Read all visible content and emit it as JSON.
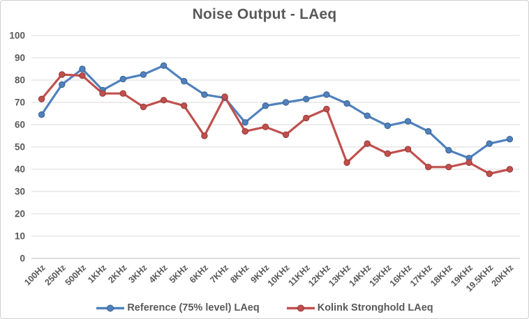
{
  "chart_data": {
    "type": "line",
    "title": "Noise Output - LAeq",
    "xlabel": "",
    "ylabel": "",
    "ylim": [
      0,
      100
    ],
    "ytick_step": 10,
    "grid": "horizontal-only",
    "legend_position": "bottom",
    "x_label_rotation_deg": 45,
    "categories": [
      "100Hz",
      "250Hz",
      "500Hz",
      "1KHz",
      "2KHz",
      "3KHz",
      "4KHz",
      "5KHz",
      "6KHz",
      "7KHz",
      "8KHz",
      "9KHz",
      "10KHz",
      "11KHz",
      "12KHz",
      "13KHz",
      "14KHz",
      "15KHz",
      "16KHz",
      "17KHz",
      "18KHz",
      "19KHz",
      "19.5KHz",
      "20KHz"
    ],
    "series": [
      {
        "name": "Reference (75% level) LAeq",
        "color": "#4F81BD",
        "marker_border": "#39618F",
        "marker": "circle",
        "values": [
          64.5,
          78,
          85,
          75.5,
          80.5,
          82.5,
          86.5,
          79.5,
          73.5,
          72,
          61,
          68.5,
          70,
          71.5,
          73.5,
          69.5,
          64,
          59.5,
          61.5,
          57,
          48.5,
          45,
          51.5,
          53.5
        ]
      },
      {
        "name": "Kolink Stronghold LAeq",
        "color": "#C0504D",
        "marker_border": "#943634",
        "marker": "circle",
        "values": [
          71.5,
          82.5,
          82,
          74,
          74,
          68,
          71,
          68.5,
          55,
          72.5,
          57,
          59,
          55.5,
          63,
          67,
          43,
          51.5,
          47,
          49,
          41,
          41,
          43,
          38,
          40
        ]
      }
    ],
    "colors": {
      "title_text": "#595959",
      "axis_text": "#595959",
      "gridline": "#D9D9D9",
      "axis_line": "#BFBFBF",
      "background": "#FFFFFF"
    }
  }
}
